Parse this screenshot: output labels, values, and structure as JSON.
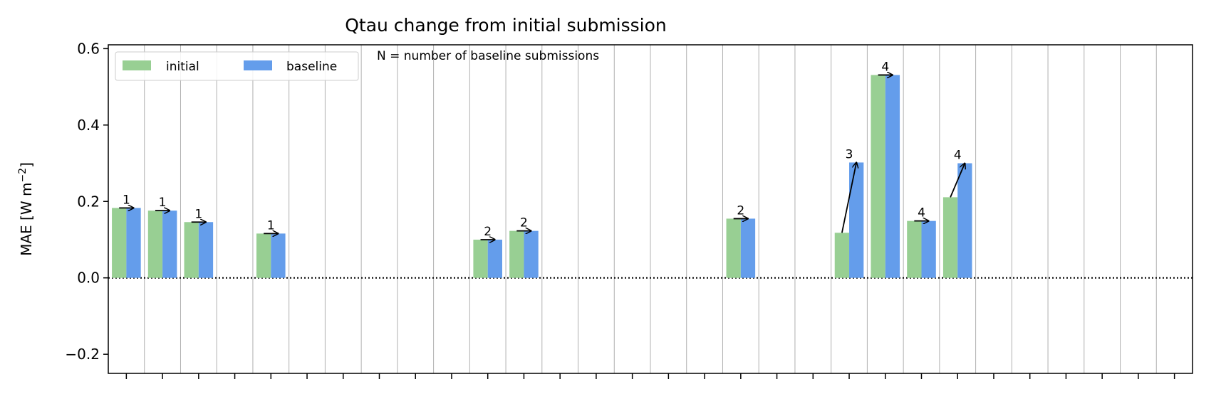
{
  "chart_data": {
    "type": "bar",
    "title": "Qtau change from initial submission",
    "ylabel": "MAE [W m",
    "ylabel_sup": "−2",
    "ylabel_close": "]",
    "note": "N = number of baseline submissions",
    "ylim": [
      -0.25,
      0.61
    ],
    "yticks": [
      -0.2,
      0.0,
      0.2,
      0.4,
      0.6
    ],
    "ytick_labels": [
      "−0.2",
      "0.0",
      "0.2",
      "0.4",
      "0.6"
    ],
    "num_categories": 30,
    "grid": "vertical",
    "legend": {
      "placement": "top-left",
      "ncol": 2
    },
    "series": [
      {
        "name": "initial",
        "color": "#98CF93"
      },
      {
        "name": "baseline",
        "color": "#649DEB"
      }
    ],
    "bars": [
      {
        "index": 0,
        "initial": 0.183,
        "baseline": 0.183,
        "n": "1"
      },
      {
        "index": 1,
        "initial": 0.176,
        "baseline": 0.176,
        "n": "1"
      },
      {
        "index": 2,
        "initial": 0.146,
        "baseline": 0.146,
        "n": "1"
      },
      {
        "index": 4,
        "initial": 0.116,
        "baseline": 0.116,
        "n": "1"
      },
      {
        "index": 10,
        "initial": 0.1,
        "baseline": 0.1,
        "n": "2"
      },
      {
        "index": 11,
        "initial": 0.123,
        "baseline": 0.123,
        "n": "2"
      },
      {
        "index": 17,
        "initial": 0.155,
        "baseline": 0.155,
        "n": "2"
      },
      {
        "index": 20,
        "initial": 0.118,
        "baseline": 0.302,
        "n": "3"
      },
      {
        "index": 21,
        "initial": 0.531,
        "baseline": 0.531,
        "n": "4"
      },
      {
        "index": 22,
        "initial": 0.149,
        "baseline": 0.149,
        "n": "4"
      },
      {
        "index": 23,
        "initial": 0.211,
        "baseline": 0.3,
        "n": "4"
      }
    ]
  }
}
